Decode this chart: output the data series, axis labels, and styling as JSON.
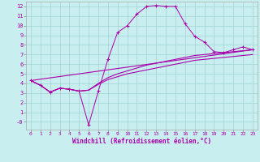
{
  "xlabel": "Windchill (Refroidissement éolien,°C)",
  "bg_color": "#c8eef0",
  "line_color": "#aa00aa",
  "xlim": [
    -0.5,
    23.5
  ],
  "ylim": [
    -0.8,
    12.5
  ],
  "xticks": [
    0,
    1,
    2,
    3,
    4,
    5,
    6,
    7,
    8,
    9,
    10,
    11,
    12,
    13,
    14,
    15,
    16,
    17,
    18,
    19,
    20,
    21,
    22,
    23
  ],
  "ytick_labels": [
    "-0",
    "1",
    "2",
    "3",
    "4",
    "5",
    "6",
    "7",
    "8",
    "9",
    "10",
    "11",
    "12"
  ],
  "series": [
    {
      "x": [
        0,
        1,
        2,
        3,
        4,
        5,
        6,
        7,
        8,
        9,
        10,
        11,
        12,
        13,
        14,
        15,
        16,
        17,
        18,
        19,
        20,
        21,
        22,
        23
      ],
      "y": [
        4.3,
        3.8,
        3.1,
        3.5,
        3.4,
        3.2,
        -0.3,
        3.2,
        6.5,
        9.3,
        10.0,
        11.2,
        12.0,
        12.1,
        12.0,
        12.0,
        10.2,
        8.9,
        8.3,
        7.3,
        7.2,
        7.5,
        7.8,
        7.5
      ],
      "marker": "+"
    },
    {
      "x": [
        0,
        1,
        2,
        3,
        4,
        5,
        6,
        7,
        8,
        9,
        10,
        11,
        12,
        13,
        14,
        15,
        16,
        17,
        18,
        19,
        20,
        21,
        22,
        23
      ],
      "y": [
        4.3,
        3.8,
        3.1,
        3.5,
        3.4,
        3.2,
        3.3,
        4.0,
        4.6,
        5.0,
        5.3,
        5.6,
        5.9,
        6.1,
        6.3,
        6.5,
        6.7,
        6.9,
        7.0,
        7.1,
        7.2,
        7.3,
        7.4,
        7.5
      ],
      "marker": null
    },
    {
      "x": [
        0,
        1,
        2,
        3,
        4,
        5,
        6,
        7,
        8,
        9,
        10,
        11,
        12,
        13,
        14,
        15,
        16,
        17,
        18,
        19,
        20,
        21,
        22,
        23
      ],
      "y": [
        4.3,
        3.8,
        3.1,
        3.5,
        3.4,
        3.2,
        3.3,
        3.9,
        4.4,
        4.7,
        5.0,
        5.2,
        5.4,
        5.6,
        5.8,
        6.0,
        6.2,
        6.4,
        6.5,
        6.6,
        6.7,
        6.8,
        6.9,
        7.0
      ],
      "marker": null
    },
    {
      "x": [
        0,
        23
      ],
      "y": [
        4.3,
        7.5
      ],
      "marker": null
    }
  ]
}
